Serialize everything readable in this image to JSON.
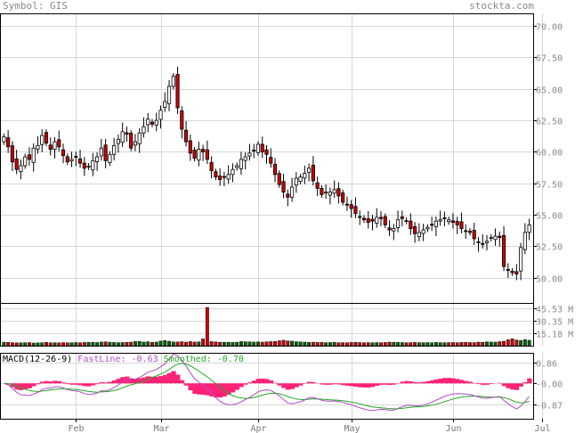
{
  "header": {
    "symbol_label": "Symbol: GIS",
    "watermark": "stockta.com"
  },
  "chart_data": {
    "type": "candlestick",
    "symbol": "GIS",
    "price_axis": {
      "ticks": [
        "70.00",
        "67.50",
        "65.00",
        "62.50",
        "60.00",
        "57.50",
        "55.00",
        "52.50",
        "50.00"
      ],
      "ylim": [
        48.0,
        71.0
      ]
    },
    "volume_axis": {
      "ticks": [
        "45.53 M",
        "30.35 M",
        "15.18 M"
      ],
      "ylim": [
        0,
        52
      ]
    },
    "macd_axis": {
      "ticks": [
        "0.86",
        "0.00",
        "-0.87"
      ],
      "ylim": [
        -1.45,
        1.25
      ]
    },
    "x_axis": {
      "labels": [
        "Feb",
        "Mar",
        "Apr",
        "May",
        "Jun",
        "Jul"
      ],
      "label_index": [
        17,
        37,
        60,
        82,
        106,
        127
      ]
    },
    "macd": {
      "title": "MACD(12-26-9)",
      "fastline_label": "FastLine:",
      "fastline_value": "-0.63",
      "smoothed_label": "Smoothed:",
      "smoothed_value": "-0.70",
      "fast_color": "#b04ac8",
      "smoothed_color": "#1faa1f",
      "hist_color": "#ff2277"
    },
    "colors": {
      "up": "#ffffff",
      "down": "#cc0000",
      "wick": "#000000",
      "vol_up": "#006600",
      "vol_down": "#cc0000",
      "grid": "#d6d6d6"
    },
    "closes": [
      61.2,
      60.4,
      59.2,
      58.6,
      58.9,
      59.6,
      59.4,
      60.3,
      60.5,
      61.3,
      60.7,
      60.2,
      60.8,
      60.4,
      59.7,
      59.2,
      59.4,
      59.6,
      59.1,
      58.7,
      58.8,
      59.3,
      59.6,
      60.3,
      59.3,
      59.8,
      60.5,
      61.0,
      61.6,
      61.4,
      60.3,
      60.8,
      61.5,
      62.0,
      62.6,
      62.2,
      62.5,
      63.3,
      64.0,
      65.2,
      66.0,
      63.5,
      61.8,
      60.8,
      59.9,
      59.5,
      60.2,
      60.0,
      59.4,
      58.5,
      58.0,
      57.8,
      58.0,
      58.2,
      58.6,
      58.9,
      59.4,
      59.6,
      59.9,
      60.1,
      60.6,
      60.0,
      59.8,
      59.1,
      58.2,
      57.4,
      56.8,
      56.4,
      57.2,
      57.9,
      58.0,
      58.3,
      58.7,
      57.7,
      57.1,
      56.6,
      56.8,
      56.8,
      57.0,
      56.5,
      56.0,
      55.8,
      55.5,
      55.1,
      54.8,
      54.6,
      54.4,
      54.5,
      54.8,
      54.7,
      54.2,
      53.8,
      53.9,
      54.6,
      54.7,
      54.5,
      53.9,
      53.5,
      53.6,
      53.8,
      54.0,
      54.2,
      54.5,
      54.6,
      54.7,
      54.6,
      54.4,
      54.2,
      53.9,
      53.7,
      53.6,
      53.1,
      52.8,
      52.7,
      52.9,
      53.2,
      53.3,
      53.2,
      50.9,
      50.6,
      50.4,
      50.3,
      52.4,
      53.6,
      54.2
    ],
    "volumes": [
      4.2,
      4.0,
      3.6,
      3.4,
      3.5,
      3.6,
      3.8,
      3.2,
      3.4,
      3.6,
      4.0,
      3.5,
      3.6,
      3.4,
      3.7,
      3.5,
      3.6,
      3.8,
      3.5,
      3.9,
      4.1,
      4.0,
      3.8,
      4.4,
      4.6,
      4.2,
      3.9,
      3.7,
      3.8,
      4.0,
      4.3,
      5.0,
      5.2,
      4.4,
      4.8,
      4.1,
      4.4,
      5.6,
      6.2,
      5.4,
      4.6,
      4.5,
      4.8,
      4.3,
      5.0,
      4.4,
      4.6,
      8.2,
      46.5,
      5.0,
      4.5,
      4.2,
      4.0,
      4.1,
      3.9,
      4.2,
      5.0,
      4.8,
      4.6,
      4.4,
      4.6,
      4.3,
      4.7,
      4.9,
      5.2,
      6.0,
      6.6,
      5.8,
      5.5,
      4.8,
      4.6,
      4.3,
      4.0,
      4.2,
      3.9,
      4.0,
      3.7,
      3.8,
      4.0,
      3.6,
      3.7,
      3.6,
      3.9,
      4.1,
      3.8,
      3.6,
      3.7,
      3.5,
      3.8,
      3.6,
      3.9,
      4.3,
      4.1,
      3.9,
      3.8,
      3.6,
      3.7,
      3.9,
      3.7,
      3.6,
      3.8,
      3.5,
      3.9,
      3.7,
      3.6,
      3.7,
      3.8,
      3.6,
      3.9,
      4.0,
      3.8,
      3.7,
      4.3,
      4.1,
      4.6,
      4.4,
      4.3,
      4.9,
      5.4,
      7.2,
      8.4,
      6.9,
      6.3,
      7.4,
      6.6
    ]
  }
}
